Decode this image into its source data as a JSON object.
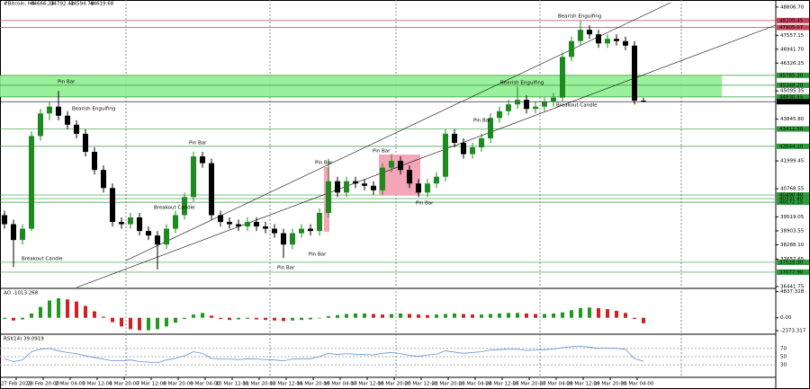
{
  "chart_data": {
    "type": "candlestick",
    "symbol": "#Bitcoin, H4",
    "up_color": "#1f8a1f",
    "down_color": "#000000",
    "ohlc": [
      [
        39600,
        39800,
        39000,
        39200
      ],
      [
        39200,
        39400,
        37300,
        38500
      ],
      [
        38500,
        39200,
        38300,
        39000
      ],
      [
        39000,
        43300,
        38900,
        43100
      ],
      [
        43100,
        44300,
        42900,
        44100
      ],
      [
        44100,
        44600,
        43800,
        44400
      ],
      [
        44400,
        45100,
        43800,
        44000
      ],
      [
        44000,
        44200,
        43400,
        43600
      ],
      [
        43600,
        43800,
        43000,
        43200
      ],
      [
        43200,
        43400,
        42200,
        42400
      ],
      [
        42400,
        42600,
        41400,
        41600
      ],
      [
        41600,
        41800,
        40600,
        40800
      ],
      [
        40800,
        41000,
        39100,
        39300
      ],
      [
        39300,
        39500,
        39000,
        39200
      ],
      [
        39200,
        39700,
        39000,
        39500
      ],
      [
        39500,
        39700,
        38700,
        38900
      ],
      [
        38900,
        39100,
        38500,
        38700
      ],
      [
        38700,
        38900,
        37200,
        38300
      ],
      [
        38300,
        39200,
        38100,
        39000
      ],
      [
        39000,
        39800,
        38800,
        39600
      ],
      [
        39600,
        40600,
        39400,
        40400
      ],
      [
        40400,
        42400,
        40200,
        42200
      ],
      [
        42200,
        42400,
        41700,
        41900
      ],
      [
        41900,
        42100,
        39400,
        39600
      ],
      [
        39600,
        39800,
        39100,
        39300
      ],
      [
        39300,
        39500,
        39000,
        39200
      ],
      [
        39200,
        39400,
        38900,
        39100
      ],
      [
        39100,
        39500,
        38900,
        39300
      ],
      [
        39300,
        39500,
        38900,
        39100
      ],
      [
        39100,
        39300,
        38800,
        39000
      ],
      [
        39000,
        39200,
        38600,
        38800
      ],
      [
        38800,
        39000,
        37700,
        38300
      ],
      [
        38300,
        39000,
        38100,
        38800
      ],
      [
        38800,
        39200,
        38600,
        39000
      ],
      [
        39000,
        39200,
        38700,
        38900
      ],
      [
        38900,
        39900,
        38700,
        39700
      ],
      [
        39700,
        42100,
        39500,
        41100
      ],
      [
        41100,
        41300,
        40400,
        40600
      ],
      [
        40600,
        41300,
        40400,
        41100
      ],
      [
        41100,
        41300,
        40800,
        41000
      ],
      [
        41000,
        41200,
        40700,
        40900
      ],
      [
        40900,
        41100,
        40500,
        40700
      ],
      [
        40700,
        41900,
        40500,
        41700
      ],
      [
        41700,
        42300,
        41500,
        42000
      ],
      [
        42000,
        42200,
        41400,
        41600
      ],
      [
        41600,
        41800,
        40800,
        41000
      ],
      [
        41000,
        41200,
        40400,
        40600
      ],
      [
        40600,
        41200,
        40400,
        41000
      ],
      [
        41000,
        41500,
        40800,
        41300
      ],
      [
        41300,
        43400,
        41100,
        43200
      ],
      [
        43200,
        43400,
        42600,
        42800
      ],
      [
        42800,
        43000,
        42100,
        42300
      ],
      [
        42300,
        42800,
        42100,
        42600
      ],
      [
        42600,
        43200,
        42400,
        43000
      ],
      [
        43000,
        44100,
        42800,
        43900
      ],
      [
        43900,
        44400,
        43700,
        44200
      ],
      [
        44200,
        44700,
        44000,
        44500
      ],
      [
        44500,
        45300,
        44300,
        44700
      ],
      [
        44700,
        44900,
        44100,
        44300
      ],
      [
        44300,
        44600,
        44100,
        44400
      ],
      [
        44400,
        44800,
        44200,
        44600
      ],
      [
        44600,
        45000,
        44400,
        44800
      ],
      [
        44800,
        46800,
        44600,
        46600
      ],
      [
        46600,
        47500,
        46400,
        47300
      ],
      [
        47300,
        48200,
        47100,
        47800
      ],
      [
        47800,
        48000,
        47400,
        47600
      ],
      [
        47600,
        47800,
        47000,
        47200
      ],
      [
        47200,
        47600,
        47000,
        47400
      ],
      [
        47400,
        47600,
        47100,
        47300
      ],
      [
        47300,
        47500,
        46900,
        47100
      ],
      [
        47100,
        47300,
        44500,
        44666.23
      ],
      [
        44666.23,
        44792.42,
        44594.78,
        44619.68
      ]
    ],
    "ylim": [
      36400,
      48920
    ],
    "yticks": [
      {
        "value": 48806.7,
        "label": "48806.70"
      },
      47557.15,
      {
        "value": 46941.7,
        "label": "46941.70"
      },
      46326.25,
      45095.35,
      {
        "value": 43845.8,
        "label": "43845.80"
      },
      41999.45,
      40768.55,
      39519.05,
      38903.55,
      {
        "value": 38288.1,
        "label": "38288.10"
      },
      37657.65,
      36441.75
    ],
    "levels": [
      {
        "value": 48209.45,
        "label": "48209.45",
        "color": "#c8455b"
      },
      {
        "value": 47905.07,
        "label": "47905.07",
        "color": "#c8455b"
      },
      {
        "value": 45785.3,
        "label": "45785.30",
        "color": "#2e9b3a"
      },
      {
        "value": 45348.2,
        "label": "45348.20",
        "color": "#2e9b3a"
      },
      {
        "value": 44830.55,
        "label": "44830.55",
        "color": "#2e9b3a"
      },
      {
        "value": 44619.68,
        "label": "44619.68",
        "color": "#000000"
      },
      {
        "value": 43412.5,
        "label": "43412.50",
        "color": "#2e9b3a"
      },
      {
        "value": 42644.1,
        "label": "42644.10",
        "color": "#2e9b3a"
      },
      {
        "value": 40490.8,
        "label": "40490.80",
        "color": "#2e9b3a"
      },
      {
        "value": 40331.4,
        "label": "40331.40",
        "color": "#2e9b3a"
      },
      {
        "value": 40172.15,
        "label": "40172.15",
        "color": "#2e9b3a"
      },
      {
        "value": 37515.3,
        "label": "37515.30",
        "color": "#2e9b3a"
      },
      {
        "value": 37077.9,
        "label": "37077.90",
        "color": "#2e9b3a"
      }
    ],
    "zone_color": "#90ee90",
    "annotations": [
      "Bearish Engulfing",
      "Pin Bar",
      "Bearish Engulfing",
      "Pin Bar",
      "Breakout Candle",
      "Pin Bar",
      "Pin Bar",
      "Pin Bar",
      "Breakout Candle",
      "Pin Bar",
      "Pin Bar",
      "Bearish Engulfing",
      "Breakout Candle",
      "Pin Bar"
    ],
    "categories": [
      "27 Feb 2022",
      "28 Feb 20:00",
      "2 Mar 04:00",
      "3 Mar 12:00",
      "4 Mar 20:00",
      "7 Mar 12:00",
      "8 Mar 20:00",
      "9 Mar 04:00",
      "10 Mar 12:00",
      "11 Mar 20:00",
      "13 Mar 12:00",
      "14 Mar 20:00",
      "16 Mar 04:00",
      "17 Mar 12:00",
      "18 Mar 20:00",
      "20 Mar 12:00",
      "21 Mar 20:00",
      "23 Mar 04:00",
      "24 Mar 12:00",
      "25 Mar 20:00",
      "27 Mar 04:00",
      "28 Mar 12:00",
      "29 Mar 20:00",
      "31 Mar 04:00"
    ],
    "ao": {
      "name": "AO",
      "up_color": "#1f9a1f",
      "down_color": "#d02020",
      "values": [
        -200,
        -500,
        -300,
        800,
        2000,
        3200,
        3600,
        3400,
        3000,
        2200,
        1200,
        200,
        -800,
        -1600,
        -2100,
        -2300,
        -2300,
        -2100,
        -1600,
        -900,
        -200,
        600,
        900,
        400,
        -200,
        -400,
        -300,
        -200,
        -300,
        -400,
        -500,
        -600,
        -500,
        -400,
        -300,
        -100,
        300,
        500,
        700,
        800,
        800,
        700,
        600,
        700,
        800,
        700,
        600,
        500,
        600,
        700,
        800,
        700,
        600,
        600,
        700,
        800,
        900,
        900,
        800,
        700,
        700,
        800,
        1000,
        1400,
        1800,
        1900,
        1800,
        1600,
        1300,
        900,
        -200,
        -1013.268
      ],
      "ylim": [
        -2700,
        5100
      ],
      "yticks": [
        {
          "value": 4837.328,
          "label": "4837.328"
        },
        {
          "value": 0,
          "label": "0.00"
        },
        {
          "value": -2373.317,
          "label": "-2373.317"
        }
      ]
    },
    "rsi": {
      "name": "RSI(14)",
      "color": "#5b8fd6",
      "values": [
        45,
        38,
        42,
        62,
        68,
        70,
        64,
        60,
        57,
        52,
        48,
        44,
        40,
        40,
        42,
        38,
        37,
        35,
        42,
        46,
        52,
        62,
        58,
        46,
        44,
        44,
        43,
        45,
        44,
        43,
        42,
        40,
        44,
        45,
        45,
        50,
        58,
        55,
        57,
        56,
        55,
        54,
        58,
        60,
        57,
        53,
        51,
        54,
        56,
        64,
        61,
        58,
        60,
        62,
        66,
        67,
        68,
        68,
        65,
        66,
        67,
        68,
        72,
        74,
        75,
        73,
        70,
        71,
        70,
        68,
        45,
        39.0919
      ],
      "ylim": [
        0,
        100
      ],
      "yticks": [
        30,
        50,
        70
      ]
    }
  }
}
